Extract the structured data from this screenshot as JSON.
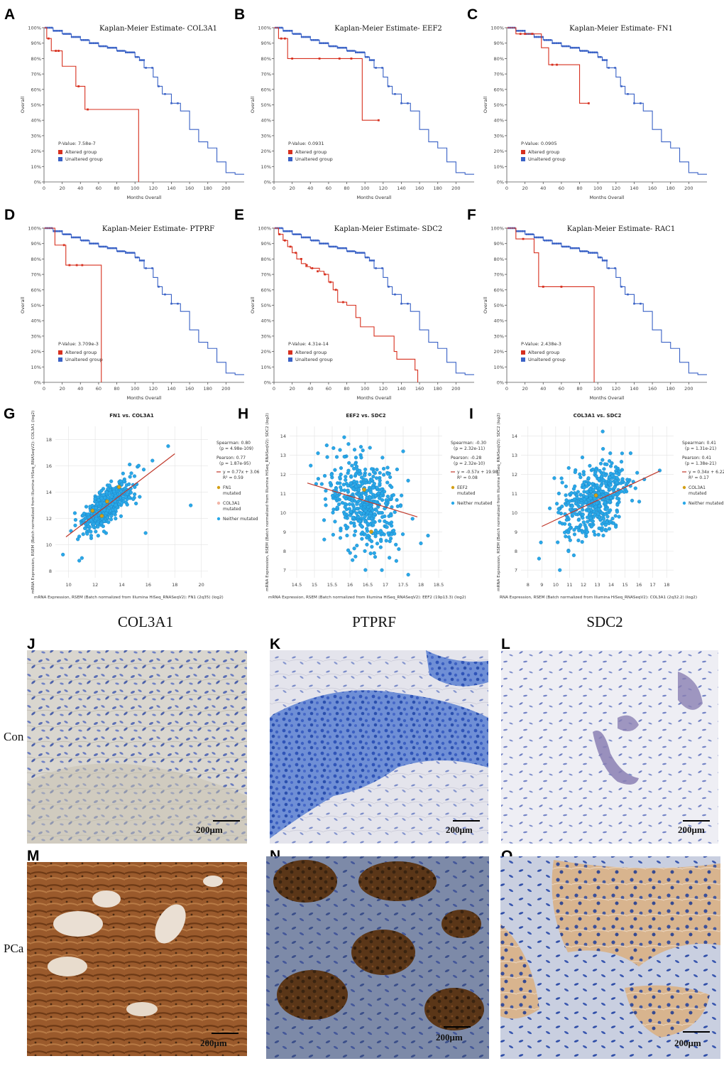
{
  "colors": {
    "altered": "#d7301f",
    "unaltered": "#3a62c6",
    "scatter_point": "#29a8e8",
    "mutated_point": "#d4a017",
    "fit_line": "#c0392b"
  },
  "km_common": {
    "ylabel": "Overall",
    "xlabel": "Months Overall",
    "altered_label": "Altered group",
    "unaltered_label": "Unaltered group"
  },
  "scatter_common": {
    "neither_label": "Neither mutated"
  },
  "ihc": {
    "row_labels": [
      "Con",
      "PCa"
    ],
    "scale_label": "200μm",
    "columns": [
      "COL3A1",
      "PTPRF",
      "SDC2"
    ],
    "panels": [
      {
        "letter": "J",
        "tissue": "Con",
        "stain": "light"
      },
      {
        "letter": "K",
        "tissue": "Con",
        "stain": "blue"
      },
      {
        "letter": "L",
        "tissue": "Con",
        "stain": "pale"
      },
      {
        "letter": "M",
        "tissue": "PCa",
        "stain": "brown"
      },
      {
        "letter": "N",
        "tissue": "PCa",
        "stain": "mixed"
      },
      {
        "letter": "O",
        "tissue": "PCa",
        "stain": "beige"
      }
    ]
  },
  "chart_data": [
    {
      "type": "line",
      "letter": "A",
      "title": "Kaplan-Meier Estimate- COL3A1",
      "pvalue": "P-Value: 7.58e-7",
      "xlim": [
        0,
        220
      ],
      "ylim": [
        0,
        100
      ],
      "xticks": [
        0,
        20,
        40,
        60,
        80,
        100,
        120,
        140,
        160,
        180,
        200
      ],
      "yticks": [
        "0%",
        "10%",
        "20%",
        "30%",
        "40%",
        "50%",
        "60%",
        "70%",
        "80%",
        "90%",
        "100%"
      ],
      "series": [
        {
          "name": "Unaltered group",
          "x": [
            0,
            10,
            20,
            30,
            40,
            50,
            60,
            70,
            80,
            90,
            100,
            105,
            110,
            120,
            125,
            130,
            140,
            150,
            160,
            170,
            180,
            190,
            200,
            210,
            220
          ],
          "y": [
            100,
            98,
            96,
            94,
            92,
            90,
            88,
            87,
            85,
            84,
            81,
            79,
            74,
            68,
            62,
            57,
            51,
            46,
            34,
            26,
            22,
            13,
            6,
            5,
            5
          ]
        },
        {
          "name": "Altered group",
          "x": [
            0,
            3,
            8,
            12,
            20,
            35,
            45,
            104,
            104
          ],
          "y": [
            100,
            93,
            85,
            85,
            75,
            62,
            47,
            47,
            0
          ],
          "censor_x": [
            5,
            13,
            16,
            38,
            48
          ],
          "censor_y": [
            93,
            85,
            85,
            62,
            47
          ]
        }
      ]
    },
    {
      "type": "line",
      "letter": "B",
      "title": "Kaplan-Meier Estimate- EEF2",
      "pvalue": "P-Value: 0.0931",
      "xlim": [
        0,
        220
      ],
      "ylim": [
        0,
        100
      ],
      "xticks": [
        0,
        20,
        40,
        60,
        80,
        100,
        120,
        140,
        160,
        180,
        200
      ],
      "yticks": [
        "0%",
        "10%",
        "20%",
        "30%",
        "40%",
        "50%",
        "60%",
        "70%",
        "80%",
        "90%",
        "100%"
      ],
      "series": [
        {
          "name": "Unaltered group",
          "x": [
            0,
            10,
            20,
            30,
            40,
            50,
            60,
            70,
            80,
            90,
            100,
            105,
            110,
            120,
            125,
            130,
            140,
            150,
            160,
            170,
            180,
            190,
            200,
            210,
            220
          ],
          "y": [
            100,
            98,
            96,
            94,
            92,
            90,
            88,
            87,
            85,
            84,
            81,
            79,
            74,
            68,
            62,
            57,
            51,
            46,
            34,
            26,
            22,
            13,
            6,
            5,
            5
          ]
        },
        {
          "name": "Altered group",
          "x": [
            0,
            5,
            10,
            15,
            97,
            97,
            115
          ],
          "y": [
            100,
            93,
            93,
            80,
            80,
            40,
            40
          ],
          "censor_x": [
            8,
            12,
            20,
            50,
            72,
            85,
            115
          ],
          "censor_y": [
            93,
            93,
            80,
            80,
            80,
            80,
            40
          ]
        }
      ]
    },
    {
      "type": "line",
      "letter": "C",
      "title": "Kaplan-Meier Estimate- FN1",
      "pvalue": "P-Value: 0.0905",
      "xlim": [
        0,
        220
      ],
      "ylim": [
        0,
        100
      ],
      "xticks": [
        0,
        20,
        40,
        60,
        80,
        100,
        120,
        140,
        160,
        180,
        200
      ],
      "yticks": [
        "0%",
        "10%",
        "20%",
        "30%",
        "40%",
        "50%",
        "60%",
        "70%",
        "80%",
        "90%",
        "100%"
      ],
      "series": [
        {
          "name": "Unaltered group",
          "x": [
            0,
            10,
            20,
            30,
            40,
            50,
            60,
            70,
            80,
            90,
            100,
            105,
            110,
            120,
            125,
            130,
            140,
            150,
            160,
            170,
            180,
            190,
            200,
            210,
            220
          ],
          "y": [
            100,
            98,
            96,
            94,
            92,
            90,
            88,
            87,
            85,
            84,
            81,
            79,
            74,
            68,
            62,
            57,
            51,
            46,
            34,
            26,
            22,
            13,
            6,
            5,
            5
          ]
        },
        {
          "name": "Altered group",
          "x": [
            0,
            10,
            30,
            38,
            46,
            80,
            80,
            90
          ],
          "y": [
            100,
            96,
            96,
            87,
            76,
            76,
            51,
            51
          ],
          "censor_x": [
            15,
            20,
            28,
            50,
            55,
            90
          ],
          "censor_y": [
            96,
            96,
            96,
            76,
            76,
            51
          ]
        }
      ]
    },
    {
      "type": "line",
      "letter": "D",
      "title": "Kaplan-Meier Estimate- PTPRF",
      "pvalue": "P-Value: 3.709e-3",
      "xlim": [
        0,
        220
      ],
      "ylim": [
        0,
        100
      ],
      "xticks": [
        0,
        20,
        40,
        60,
        80,
        100,
        120,
        140,
        160,
        180,
        200
      ],
      "yticks": [
        "0%",
        "10%",
        "20%",
        "30%",
        "40%",
        "50%",
        "60%",
        "70%",
        "80%",
        "90%",
        "100%"
      ],
      "series": [
        {
          "name": "Unaltered group",
          "x": [
            0,
            10,
            20,
            30,
            40,
            50,
            60,
            70,
            80,
            90,
            100,
            105,
            110,
            120,
            125,
            130,
            140,
            150,
            160,
            170,
            180,
            190,
            200,
            210,
            220
          ],
          "y": [
            100,
            98,
            96,
            94,
            92,
            90,
            88,
            87,
            85,
            84,
            81,
            79,
            74,
            68,
            62,
            57,
            51,
            46,
            34,
            26,
            22,
            13,
            6,
            5,
            5
          ]
        },
        {
          "name": "Altered group",
          "x": [
            0,
            12,
            20,
            24,
            63,
            63
          ],
          "y": [
            100,
            89,
            89,
            76,
            76,
            0
          ],
          "censor_x": [
            22,
            28,
            36,
            42
          ],
          "censor_y": [
            89,
            76,
            76,
            76
          ]
        }
      ]
    },
    {
      "type": "line",
      "letter": "E",
      "title": "Kaplan-Meier Estimate- SDC2",
      "pvalue": "P-Value: 4.31e-14",
      "xlim": [
        0,
        220
      ],
      "ylim": [
        0,
        100
      ],
      "xticks": [
        0,
        20,
        40,
        60,
        80,
        100,
        120,
        140,
        160,
        180,
        200
      ],
      "yticks": [
        "0%",
        "10%",
        "20%",
        "30%",
        "40%",
        "50%",
        "60%",
        "70%",
        "80%",
        "90%",
        "100%"
      ],
      "series": [
        {
          "name": "Unaltered group",
          "x": [
            0,
            10,
            20,
            30,
            40,
            50,
            60,
            70,
            80,
            90,
            100,
            105,
            110,
            120,
            125,
            130,
            140,
            150,
            160,
            170,
            180,
            190,
            200,
            210,
            220
          ],
          "y": [
            100,
            98,
            96,
            94,
            92,
            90,
            88,
            87,
            85,
            84,
            81,
            79,
            74,
            68,
            62,
            57,
            51,
            46,
            34,
            26,
            22,
            13,
            6,
            5,
            5
          ]
        },
        {
          "name": "Altered group",
          "x": [
            0,
            5,
            10,
            15,
            20,
            25,
            30,
            35,
            40,
            50,
            55,
            60,
            65,
            70,
            80,
            90,
            95,
            110,
            125,
            132,
            135,
            155,
            158
          ],
          "y": [
            100,
            96,
            92,
            88,
            84,
            80,
            77,
            75,
            74,
            72,
            70,
            65,
            60,
            52,
            50,
            42,
            36,
            30,
            30,
            20,
            15,
            8,
            0
          ],
          "censor_x": [
            6,
            12,
            18,
            24,
            30,
            36,
            42,
            48,
            56,
            62,
            68,
            76
          ],
          "censor_y": [
            96,
            92,
            88,
            84,
            80,
            76,
            74,
            72,
            70,
            65,
            60,
            52
          ]
        }
      ]
    },
    {
      "type": "line",
      "letter": "F",
      "title": "Kaplan-Meier Estimate- RAC1",
      "pvalue": "P-Value: 2.438e-3",
      "xlim": [
        0,
        220
      ],
      "ylim": [
        0,
        100
      ],
      "xticks": [
        0,
        20,
        40,
        60,
        80,
        100,
        120,
        140,
        160,
        180,
        200
      ],
      "yticks": [
        "0%",
        "10%",
        "20%",
        "30%",
        "40%",
        "50%",
        "60%",
        "70%",
        "80%",
        "90%",
        "100%"
      ],
      "series": [
        {
          "name": "Unaltered group",
          "x": [
            0,
            10,
            20,
            30,
            40,
            50,
            60,
            70,
            80,
            90,
            100,
            105,
            110,
            120,
            125,
            130,
            140,
            150,
            160,
            170,
            180,
            190,
            200,
            210,
            220
          ],
          "y": [
            100,
            98,
            96,
            94,
            92,
            90,
            88,
            87,
            85,
            84,
            81,
            79,
            74,
            68,
            62,
            57,
            51,
            46,
            34,
            26,
            22,
            13,
            6,
            5,
            5
          ]
        },
        {
          "name": "Altered group",
          "x": [
            0,
            10,
            25,
            30,
            35,
            96,
            96
          ],
          "y": [
            100,
            93,
            93,
            84,
            62,
            62,
            0
          ],
          "censor_x": [
            18,
            40,
            60
          ],
          "censor_y": [
            93,
            62,
            62
          ]
        }
      ]
    },
    {
      "type": "scatter",
      "letter": "G",
      "title": "FN1 vs. COL3A1",
      "xlabel": "mRNA Expression, RSEM (Batch normalized from Illumina HiSeq_RNASeqV2): FN1 (2q35) (log2)",
      "ylabel": "mRNA Expression, RSEM (Batch normalized from Illumina HiSeq_RNASeqV2): COL3A1 (log2)",
      "xlim": [
        9,
        20.5
      ],
      "ylim": [
        7.5,
        19
      ],
      "xticks": [
        10,
        12,
        14,
        16,
        18,
        20
      ],
      "yticks": [
        8,
        10,
        12,
        14,
        16,
        18
      ],
      "stats": [
        "Spearman: 0.80",
        "(p = 4.98e-109)",
        "Pearson: 0.77",
        "(p = 1.87e-95)",
        "y = 0.77x + 3.06",
        "R² = 0.59"
      ],
      "legend": [
        "FN1 mutated",
        "COL3A1 mutated",
        "Neither mutated"
      ],
      "fit": {
        "slope": 0.77,
        "intercept": 3.06,
        "x_range": [
          9.8,
          18
        ]
      },
      "cloud": {
        "x_mean": 12.8,
        "x_sd": 1.0,
        "y_mean": 12.9,
        "y_sd": 1.0,
        "correlation": 0.77,
        "n": 480
      },
      "mutated_x": [
        11.8,
        12.5,
        13.8,
        12.9
      ],
      "mutated_y": [
        12.6,
        12.2,
        14.4,
        13.3
      ],
      "outliers_x": [
        17.5,
        19.2,
        15.8,
        11.0,
        10.8
      ],
      "outliers_y": [
        17.5,
        13.0,
        10.9,
        9.0,
        8.8
      ]
    },
    {
      "type": "scatter",
      "letter": "H",
      "title": "EEF2 vs. SDC2",
      "xlabel": "mRNA Expression, RSEM (Batch normalized from Illumina HiSeq_RNASeqV2): EEF2 (19p13.3) (log2)",
      "ylabel": "mRNA Expression, RSEM (Batch normalized from Illumina HiSeq_RNASeqV2): SDC2 (log2)",
      "xlim": [
        14.3,
        18.6
      ],
      "ylim": [
        6.6,
        14.5
      ],
      "xticks": [
        14.5,
        15,
        15.5,
        16,
        16.5,
        17,
        17.5,
        18,
        18.5
      ],
      "yticks": [
        7,
        8,
        9,
        10,
        11,
        12,
        13,
        14
      ],
      "stats": [
        "Spearman: -0.30",
        "(p = 2.32e-11)",
        "Pearson: -0.28",
        "(p = 2.32e-10)",
        "y = -0.57x + 19.98",
        "R² = 0.08"
      ],
      "legend": [
        "EEF2 mutated",
        "Neither mutated"
      ],
      "fit": {
        "slope": -0.57,
        "intercept": 19.98,
        "x_range": [
          14.8,
          17.9
        ]
      },
      "cloud": {
        "x_mean": 16.4,
        "x_sd": 0.5,
        "y_mean": 10.6,
        "y_sd": 1.1,
        "correlation": -0.28,
        "n": 480
      },
      "mutated_x": [
        16.6,
        16.4
      ],
      "mutated_y": [
        9.0,
        11.2
      ],
      "outliers_x": [
        16.9,
        18.2,
        15.1,
        17.5
      ],
      "outliers_y": [
        7.0,
        8.8,
        13.1,
        13.2
      ]
    },
    {
      "type": "scatter",
      "letter": "I",
      "title": "COL3A1 vs. SDC2",
      "xlabel": "RNA Expression, RSEM (Batch normalized from Illumina HiSeq_RNASeqV2): COL3A1 (2q32.2) (log2)",
      "ylabel": "mRNA Expression, RSEM (Batch normalized from Illumina HiSeq_RNASeqV2): SDC2 (log2)",
      "xlim": [
        7.5,
        18.5
      ],
      "ylim": [
        6.6,
        14.5
      ],
      "xticks": [
        8,
        9,
        10,
        11,
        12,
        13,
        14,
        15,
        16,
        17,
        18
      ],
      "yticks": [
        7,
        8,
        9,
        10,
        11,
        12,
        13,
        14
      ],
      "stats": [
        "Spearman: 0.41",
        "(p = 1.31e-21)",
        "Pearson: 0.41",
        "(p = 1.38e-21)",
        "y = 0.34x + 6.22",
        "R² = 0.17"
      ],
      "legend": [
        "COL3A1 mutated",
        "Neither mutated"
      ],
      "fit": {
        "slope": 0.34,
        "intercept": 6.22,
        "x_range": [
          9,
          17.5
        ]
      },
      "cloud": {
        "x_mean": 12.8,
        "x_sd": 1.2,
        "y_mean": 10.6,
        "y_sd": 1.0,
        "correlation": 0.41,
        "n": 480
      },
      "mutated_x": [
        12.9
      ],
      "mutated_y": [
        10.9
      ],
      "outliers_x": [
        8.8,
        10.3,
        17.5,
        15.4,
        9.9
      ],
      "outliers_y": [
        7.6,
        7.0,
        12.2,
        13.1,
        11.8
      ]
    }
  ]
}
